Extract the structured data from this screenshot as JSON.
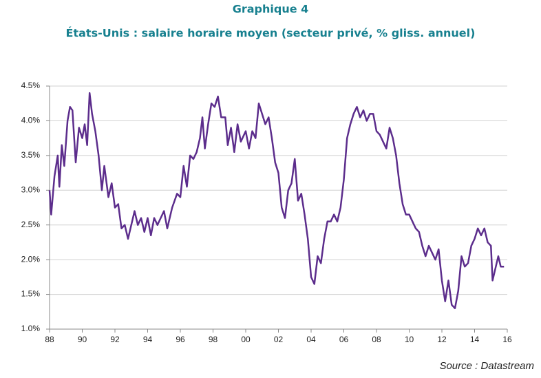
{
  "chart_data": {
    "type": "line",
    "title": "Graphique 4",
    "subtitle": "États-Unis : salaire horaire moyen (secteur privé, % gliss. annuel)",
    "source": "Source : Datastream",
    "xlim": [
      1988,
      2016
    ],
    "xticks": [
      {
        "value": 1988,
        "label": "88"
      },
      {
        "value": 1990,
        "label": "90"
      },
      {
        "value": 1992,
        "label": "92"
      },
      {
        "value": 1994,
        "label": "94"
      },
      {
        "value": 1996,
        "label": "96"
      },
      {
        "value": 1998,
        "label": "98"
      },
      {
        "value": 2000,
        "label": "00"
      },
      {
        "value": 2002,
        "label": "02"
      },
      {
        "value": 2004,
        "label": "04"
      },
      {
        "value": 2006,
        "label": "06"
      },
      {
        "value": 2008,
        "label": "08"
      },
      {
        "value": 2010,
        "label": "10"
      },
      {
        "value": 2012,
        "label": "12"
      },
      {
        "value": 2014,
        "label": "14"
      },
      {
        "value": 2016,
        "label": "16"
      }
    ],
    "ylim": [
      1.0,
      4.5
    ],
    "yticks": [
      {
        "value": 1.0,
        "label": "1.0%"
      },
      {
        "value": 1.5,
        "label": "1.5%"
      },
      {
        "value": 2.0,
        "label": "2.0%"
      },
      {
        "value": 2.5,
        "label": "2.5%"
      },
      {
        "value": 3.0,
        "label": "3.0%"
      },
      {
        "value": 3.5,
        "label": "3.5%"
      },
      {
        "value": 4.0,
        "label": "4.0%"
      },
      {
        "value": 4.5,
        "label": "4.5%"
      }
    ],
    "grid": true,
    "color": "#5c2d8c",
    "x": [
      1988.0,
      1988.1,
      1988.3,
      1988.5,
      1988.6,
      1988.75,
      1988.9,
      1989.1,
      1989.25,
      1989.4,
      1989.6,
      1989.8,
      1990.0,
      1990.15,
      1990.3,
      1990.45,
      1990.6,
      1990.8,
      1991.0,
      1991.2,
      1991.35,
      1991.6,
      1991.8,
      1992.0,
      1992.2,
      1992.4,
      1992.6,
      1992.8,
      1993.0,
      1993.2,
      1993.4,
      1993.6,
      1993.8,
      1994.0,
      1994.2,
      1994.4,
      1994.6,
      1994.8,
      1995.0,
      1995.2,
      1995.5,
      1995.8,
      1996.0,
      1996.2,
      1996.4,
      1996.6,
      1996.8,
      1997.0,
      1997.2,
      1997.35,
      1997.5,
      1997.7,
      1997.9,
      1998.1,
      1998.3,
      1998.5,
      1998.75,
      1998.9,
      1999.1,
      1999.3,
      1999.5,
      1999.7,
      2000.0,
      2000.2,
      2000.4,
      2000.6,
      2000.8,
      2001.0,
      2001.2,
      2001.4,
      2001.6,
      2001.8,
      2002.0,
      2002.2,
      2002.4,
      2002.6,
      2002.8,
      2003.0,
      2003.2,
      2003.4,
      2003.6,
      2003.8,
      2004.0,
      2004.2,
      2004.4,
      2004.6,
      2004.8,
      2005.0,
      2005.2,
      2005.4,
      2005.6,
      2005.8,
      2006.0,
      2006.2,
      2006.4,
      2006.6,
      2006.8,
      2007.0,
      2007.2,
      2007.4,
      2007.6,
      2007.8,
      2008.0,
      2008.2,
      2008.4,
      2008.6,
      2008.8,
      2009.0,
      2009.2,
      2009.4,
      2009.6,
      2009.8,
      2010.0,
      2010.2,
      2010.4,
      2010.6,
      2010.8,
      2011.0,
      2011.2,
      2011.4,
      2011.6,
      2011.8,
      2012.0,
      2012.2,
      2012.4,
      2012.6,
      2012.8,
      2013.0,
      2013.2,
      2013.4,
      2013.6,
      2013.8,
      2014.0,
      2014.2,
      2014.4,
      2014.6,
      2014.8,
      2015.0,
      2015.1,
      2015.3,
      2015.45,
      2015.6,
      2015.8
    ],
    "values": [
      3.0,
      2.65,
      3.2,
      3.5,
      3.05,
      3.65,
      3.35,
      4.0,
      4.2,
      4.15,
      3.4,
      3.9,
      3.75,
      3.95,
      3.65,
      4.4,
      4.1,
      3.85,
      3.5,
      3.0,
      3.35,
      2.9,
      3.1,
      2.75,
      2.8,
      2.45,
      2.5,
      2.3,
      2.5,
      2.7,
      2.5,
      2.6,
      2.4,
      2.6,
      2.35,
      2.6,
      2.5,
      2.6,
      2.7,
      2.45,
      2.75,
      2.95,
      2.9,
      3.35,
      3.05,
      3.5,
      3.45,
      3.55,
      3.75,
      4.05,
      3.6,
      3.95,
      4.25,
      4.2,
      4.35,
      4.05,
      4.05,
      3.65,
      3.9,
      3.55,
      3.95,
      3.7,
      3.85,
      3.6,
      3.85,
      3.75,
      4.25,
      4.1,
      3.95,
      4.05,
      3.75,
      3.4,
      3.25,
      2.75,
      2.6,
      3.0,
      3.1,
      3.45,
      2.85,
      2.95,
      2.65,
      2.3,
      1.75,
      1.65,
      2.05,
      1.95,
      2.3,
      2.55,
      2.55,
      2.65,
      2.55,
      2.75,
      3.15,
      3.75,
      3.95,
      4.1,
      4.2,
      4.05,
      4.15,
      4.0,
      4.1,
      4.1,
      3.85,
      3.8,
      3.7,
      3.6,
      3.9,
      3.75,
      3.5,
      3.1,
      2.8,
      2.65,
      2.65,
      2.55,
      2.45,
      2.4,
      2.2,
      2.05,
      2.2,
      2.1,
      2.0,
      2.15,
      1.7,
      1.4,
      1.7,
      1.35,
      1.3,
      1.55,
      2.05,
      1.9,
      1.95,
      2.2,
      2.3,
      2.45,
      2.35,
      2.45,
      2.25,
      2.2,
      1.7,
      1.9,
      2.05,
      1.9,
      1.9
    ]
  }
}
